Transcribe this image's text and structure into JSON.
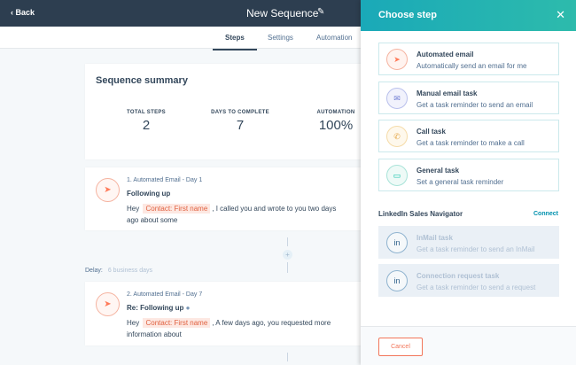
{
  "topbar": {
    "back": "Back",
    "title": "New Sequence"
  },
  "tabs": [
    "Steps",
    "Settings",
    "Automation"
  ],
  "summary": {
    "title": "Sequence summary",
    "stats": [
      {
        "label": "TOTAL STEPS",
        "value": "2"
      },
      {
        "label": "DAYS TO COMPLETE",
        "value": "7"
      },
      {
        "label": "AUTOMATION",
        "value": "100%"
      }
    ]
  },
  "steps": [
    {
      "header": "1. Automated Email - Day 1",
      "subject": "Following up",
      "hey": "Hey",
      "token": "Contact: First name",
      "body": ", I called you and wrote to you two days ago about some"
    },
    {
      "header": "2. Automated Email - Day 7",
      "subject": "Re: Following up",
      "hey": "Hey",
      "token": "Contact: First name",
      "body": ", A few days ago, you requested more information about"
    }
  ],
  "delay": {
    "label": "Delay:",
    "value": "6 business days"
  },
  "panel": {
    "title": "Choose step",
    "options": [
      {
        "name": "Automated email",
        "desc": "Automatically send an email for me",
        "color": "#ff7a59"
      },
      {
        "name": "Manual email task",
        "desc": "Get a task reminder to send an email",
        "color": "#6a78d1"
      },
      {
        "name": "Call task",
        "desc": "Get a task reminder to make a call",
        "color": "#f5c26b"
      },
      {
        "name": "General task",
        "desc": "Set a general task reminder",
        "color": "#00bda5"
      }
    ],
    "linkedin": {
      "title": "LinkedIn Sales Navigator",
      "connect": "Connect",
      "options": [
        {
          "name": "InMail task",
          "desc": "Get a task reminder to send an InMail"
        },
        {
          "name": "Connection request task",
          "desc": "Get a task reminder to send a request"
        }
      ]
    },
    "cancel": "Cancel"
  }
}
